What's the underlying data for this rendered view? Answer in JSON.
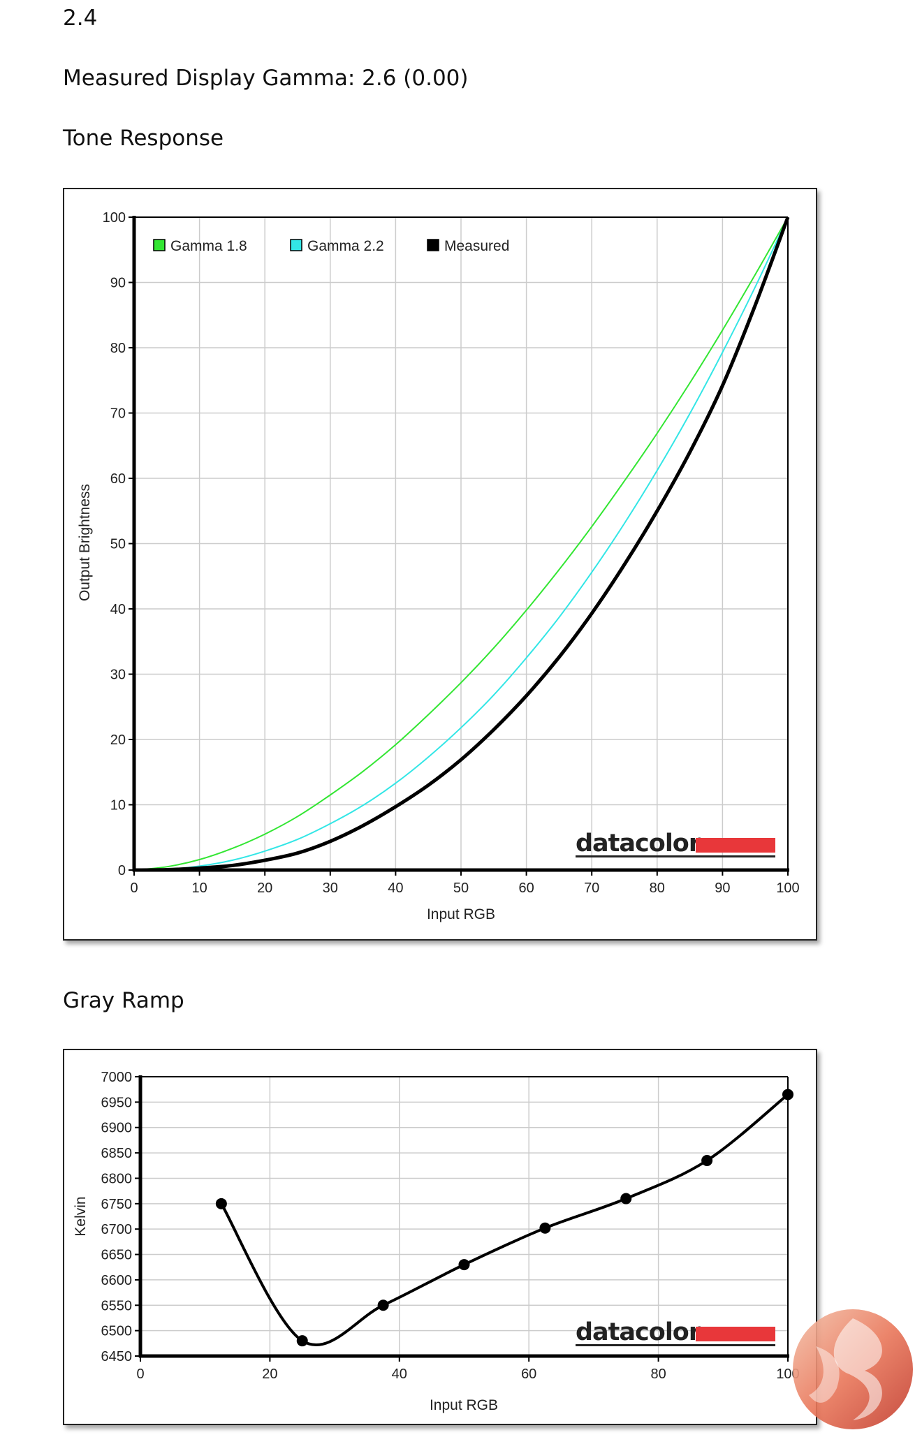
{
  "header": {
    "top_value": "2.4",
    "gamma_text": "Measured Display Gamma: 2.6 (0.00)",
    "tone_title": "Tone Response",
    "gray_title": "Gray Ramp"
  },
  "brand": {
    "name": "datacolor",
    "accent": "#e8373a"
  },
  "chart_data": [
    {
      "type": "line",
      "xlabel": "Input RGB",
      "ylabel": "Output Brightness",
      "xlim": [
        0,
        100
      ],
      "ylim": [
        0,
        100
      ],
      "xticks": [
        0,
        10,
        20,
        30,
        40,
        50,
        60,
        70,
        80,
        90,
        100
      ],
      "yticks": [
        0,
        10,
        20,
        30,
        40,
        50,
        60,
        70,
        80,
        90,
        100
      ],
      "grid": true,
      "legend": "top-left",
      "series": [
        {
          "name": "Gamma 1.8",
          "color": "#33e633",
          "x": [
            0,
            5,
            10,
            15,
            20,
            25,
            30,
            35,
            40,
            45,
            50,
            55,
            60,
            65,
            70,
            75,
            80,
            85,
            90,
            95,
            100
          ],
          "y": [
            0,
            0.5,
            1.6,
            3.3,
            5.5,
            8.2,
            11.5,
            15.1,
            19.2,
            23.8,
            28.7,
            34.0,
            39.8,
            46.0,
            52.6,
            59.6,
            66.9,
            74.6,
            82.7,
            91.2,
            100
          ]
        },
        {
          "name": "Gamma 2.2",
          "color": "#33e6e6",
          "x": [
            0,
            5,
            10,
            15,
            20,
            25,
            30,
            35,
            40,
            45,
            50,
            55,
            60,
            65,
            70,
            75,
            80,
            85,
            90,
            95,
            100
          ],
          "y": [
            0,
            0.1,
            0.6,
            1.5,
            2.9,
            4.7,
            7.1,
            9.9,
            13.3,
            17.3,
            21.8,
            26.8,
            32.5,
            38.7,
            45.6,
            53.1,
            61.2,
            69.9,
            79.3,
            89.3,
            100
          ]
        },
        {
          "name": "Measured",
          "color": "#000000",
          "x": [
            0,
            5,
            10,
            15,
            20,
            25,
            30,
            35,
            40,
            45,
            50,
            55,
            60,
            65,
            70,
            75,
            80,
            85,
            90,
            95,
            100
          ],
          "y": [
            0,
            0.05,
            0.3,
            0.7,
            1.5,
            2.6,
            4.4,
            6.8,
            9.7,
            13.0,
            16.9,
            21.5,
            26.7,
            32.6,
            39.3,
            46.8,
            55.0,
            64.0,
            74.2,
            86.5,
            100
          ]
        }
      ]
    },
    {
      "type": "line",
      "xlabel": "Input RGB",
      "ylabel": "Kelvin",
      "xlim": [
        0,
        100
      ],
      "ylim": [
        6450,
        7000
      ],
      "xticks": [
        0,
        20,
        40,
        60,
        80,
        100
      ],
      "yticks": [
        6450,
        6500,
        6550,
        6600,
        6650,
        6700,
        6750,
        6800,
        6850,
        6900,
        6950,
        7000
      ],
      "grid": true,
      "series": [
        {
          "color": "#000000",
          "x": [
            12.5,
            25,
            37.5,
            50,
            62.5,
            75,
            87.5,
            100
          ],
          "y": [
            6750,
            6480,
            6550,
            6630,
            6702,
            6760,
            6835,
            6965
          ]
        }
      ]
    }
  ]
}
